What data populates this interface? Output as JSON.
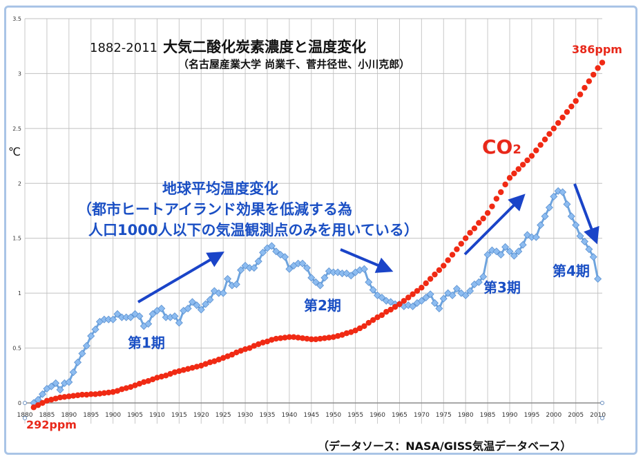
{
  "chart_data": {
    "type": "line",
    "title": "大気二酸化炭素濃度と温度変化",
    "title_years": "1882-2011",
    "subtitle": "（名古屋産業大学  尚業千、菅井径世、小川克郎）",
    "ylabel": "℃",
    "xlabel": "",
    "ylim": [
      0,
      3.5
    ],
    "xlim": [
      1880,
      2011
    ],
    "yticks": [
      "0",
      "0.5",
      "1",
      "1.5",
      "2",
      "2.5",
      "3",
      "3.5"
    ],
    "xticks": [
      "1880",
      "1885",
      "1890",
      "1895",
      "1900",
      "1905",
      "1910",
      "1915",
      "1920",
      "1925",
      "1930",
      "1935",
      "1940",
      "1945",
      "1950",
      "1955",
      "1960",
      "1965",
      "1970",
      "1975",
      "1980",
      "1985",
      "1990",
      "1995",
      "2000",
      "2005",
      "2010"
    ],
    "grid": true,
    "x_start": 1882,
    "series": [
      {
        "name": "地球平均温度変化",
        "color": "#7fb0e8",
        "values": [
          0.0,
          0.03,
          0.08,
          0.13,
          0.15,
          0.18,
          0.12,
          0.18,
          0.19,
          0.28,
          0.37,
          0.45,
          0.52,
          0.61,
          0.67,
          0.74,
          0.76,
          0.76,
          0.76,
          0.81,
          0.78,
          0.78,
          0.78,
          0.81,
          0.79,
          0.7,
          0.72,
          0.81,
          0.84,
          0.86,
          0.78,
          0.78,
          0.79,
          0.73,
          0.84,
          0.86,
          0.92,
          0.89,
          0.85,
          0.9,
          0.94,
          1.02,
          1.0,
          1.0,
          1.13,
          1.07,
          1.08,
          1.21,
          1.25,
          1.23,
          1.23,
          1.29,
          1.37,
          1.41,
          1.43,
          1.38,
          1.35,
          1.33,
          1.22,
          1.25,
          1.27,
          1.27,
          1.23,
          1.14,
          1.1,
          1.07,
          1.14,
          1.2,
          1.19,
          1.19,
          1.18,
          1.18,
          1.16,
          1.19,
          1.21,
          1.22,
          1.1,
          1.03,
          0.98,
          0.96,
          0.93,
          0.92,
          0.9,
          0.9,
          0.88,
          0.89,
          0.88,
          0.91,
          0.93,
          0.96,
          0.99,
          0.91,
          0.86,
          0.95,
          1.0,
          0.98,
          1.04,
          1.0,
          0.98,
          1.02,
          1.08,
          1.1,
          1.15,
          1.35,
          1.39,
          1.38,
          1.35,
          1.42,
          1.38,
          1.34,
          1.38,
          1.44,
          1.53,
          1.51,
          1.51,
          1.62,
          1.7,
          1.78,
          1.88,
          1.93,
          1.92,
          1.81,
          1.7,
          1.62,
          1.52,
          1.47,
          1.4,
          1.33,
          1.13
        ]
      },
      {
        "name": "CO2",
        "color": "#f02a14",
        "values": [
          -0.04,
          -0.02,
          0.0,
          0.02,
          0.03,
          0.04,
          0.05,
          0.055,
          0.06,
          0.065,
          0.07,
          0.075,
          0.075,
          0.08,
          0.08,
          0.085,
          0.09,
          0.095,
          0.1,
          0.11,
          0.125,
          0.135,
          0.145,
          0.16,
          0.175,
          0.19,
          0.2,
          0.215,
          0.23,
          0.24,
          0.25,
          0.265,
          0.28,
          0.29,
          0.3,
          0.31,
          0.32,
          0.33,
          0.34,
          0.355,
          0.37,
          0.38,
          0.395,
          0.41,
          0.425,
          0.44,
          0.46,
          0.475,
          0.49,
          0.5,
          0.52,
          0.535,
          0.55,
          0.56,
          0.575,
          0.585,
          0.59,
          0.595,
          0.6,
          0.6,
          0.595,
          0.59,
          0.585,
          0.58,
          0.58,
          0.585,
          0.59,
          0.595,
          0.6,
          0.61,
          0.62,
          0.635,
          0.645,
          0.66,
          0.68,
          0.7,
          0.73,
          0.755,
          0.78,
          0.8,
          0.83,
          0.85,
          0.875,
          0.9,
          0.93,
          0.96,
          0.99,
          1.02,
          1.05,
          1.09,
          1.13,
          1.17,
          1.21,
          1.25,
          1.3,
          1.35,
          1.4,
          1.45,
          1.5,
          1.55,
          1.59,
          1.64,
          1.68,
          1.73,
          1.79,
          1.86,
          1.92,
          1.99,
          2.05,
          2.09,
          2.13,
          2.17,
          2.21,
          2.25,
          2.3,
          2.35,
          2.4,
          2.45,
          2.5,
          2.55,
          2.6,
          2.65,
          2.7,
          2.75,
          2.81,
          2.87,
          2.93,
          2.99,
          3.05,
          3.1
        ]
      }
    ],
    "annotations": {
      "temp_title": "地球平均温度変化",
      "temp_note1": "（都市ヒートアイランド効果を低減する為",
      "temp_note2": "人口1000人以下の気温観測点のみを用いている）",
      "co2_label": "CO",
      "co2_sub": "2",
      "co2_start": "292ppm",
      "co2_end": "386ppm",
      "period1": "第1期",
      "period2": "第2期",
      "period3": "第3期",
      "period4": "第4期",
      "source": "（データソース：NASA/GISS気温データベース）"
    }
  }
}
